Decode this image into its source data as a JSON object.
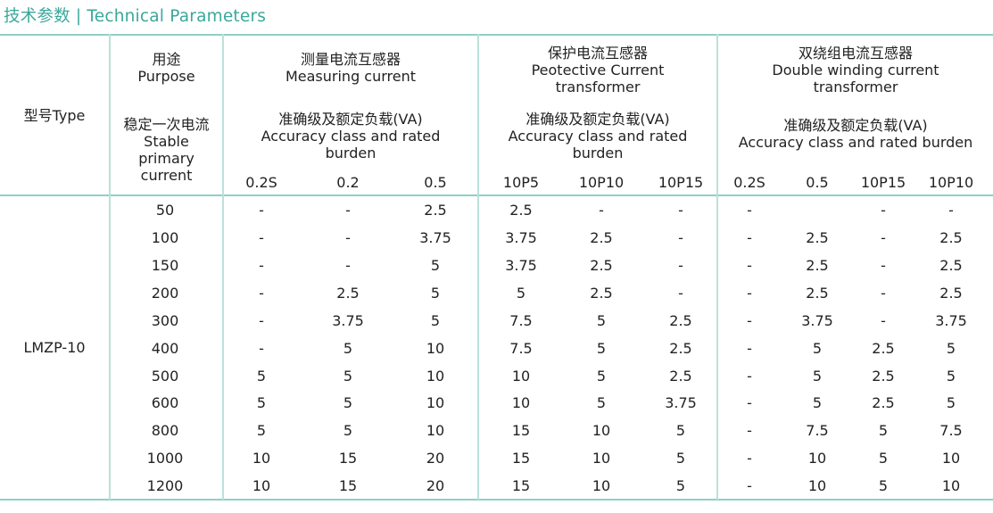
{
  "title": "技术参数 | Technical Parameters",
  "header": {
    "model": "型号Type",
    "purpose_cn": "用途",
    "purpose_en": "Purpose",
    "stable_cn": "稳定一次电流",
    "stable_en": [
      "Stable",
      "primary",
      "current"
    ],
    "groups": [
      {
        "name_cn": "测量电流互感器",
        "name_en": [
          "Measuring current"
        ],
        "acc_cn": "准确级及额定负载(VA)",
        "acc_en": [
          "Accuracy class and rated",
          "burden"
        ],
        "classes": [
          "0.2S",
          "0.2",
          "0.5"
        ]
      },
      {
        "name_cn": "保护电流互感器",
        "name_en": [
          "Peotective Current",
          "transformer"
        ],
        "acc_cn": "准确级及额定负载(VA)",
        "acc_en": [
          "Accuracy class and rated",
          "burden"
        ],
        "classes": [
          "10P5",
          "10P10",
          "10P15"
        ]
      },
      {
        "name_cn": "双绕组电流互感器",
        "name_en": [
          "Double winding current",
          "transformer"
        ],
        "acc_cn": "准确级及额定负载(VA)",
        "acc_en": [
          "Accuracy class and rated burden"
        ],
        "classes": [
          "0.2S",
          "0.5",
          "10P15",
          "10P10"
        ]
      }
    ]
  },
  "model": "LMZP-10",
  "rows": [
    [
      "50",
      "-",
      "-",
      "2.5",
      "2.5",
      "-",
      "-",
      "-",
      "",
      "-",
      "-"
    ],
    [
      "100",
      "-",
      "-",
      "3.75",
      "3.75",
      "2.5",
      "-",
      "-",
      "2.5",
      "-",
      "2.5"
    ],
    [
      "150",
      "-",
      "-",
      "5",
      "3.75",
      "2.5",
      "-",
      "-",
      "2.5",
      "-",
      "2.5"
    ],
    [
      "200",
      "-",
      "2.5",
      "5",
      "5",
      "2.5",
      "-",
      "-",
      "2.5",
      "-",
      "2.5"
    ],
    [
      "300",
      "-",
      "3.75",
      "5",
      "7.5",
      "5",
      "2.5",
      "-",
      "3.75",
      "-",
      "3.75"
    ],
    [
      "400",
      "-",
      "5",
      "10",
      "7.5",
      "5",
      "2.5",
      "-",
      "5",
      "2.5",
      "5"
    ],
    [
      "500",
      "5",
      "5",
      "10",
      "10",
      "5",
      "2.5",
      "-",
      "5",
      "2.5",
      "5"
    ],
    [
      "600",
      "5",
      "5",
      "10",
      "10",
      "5",
      "3.75",
      "-",
      "5",
      "2.5",
      "5"
    ],
    [
      "800",
      "5",
      "5",
      "10",
      "15",
      "10",
      "5",
      "-",
      "7.5",
      "5",
      "7.5"
    ],
    [
      "1000",
      "10",
      "15",
      "20",
      "15",
      "10",
      "5",
      "-",
      "10",
      "5",
      "10"
    ],
    [
      "1200",
      "10",
      "15",
      "20",
      "15",
      "10",
      "5",
      "-",
      "10",
      "5",
      "10"
    ]
  ]
}
